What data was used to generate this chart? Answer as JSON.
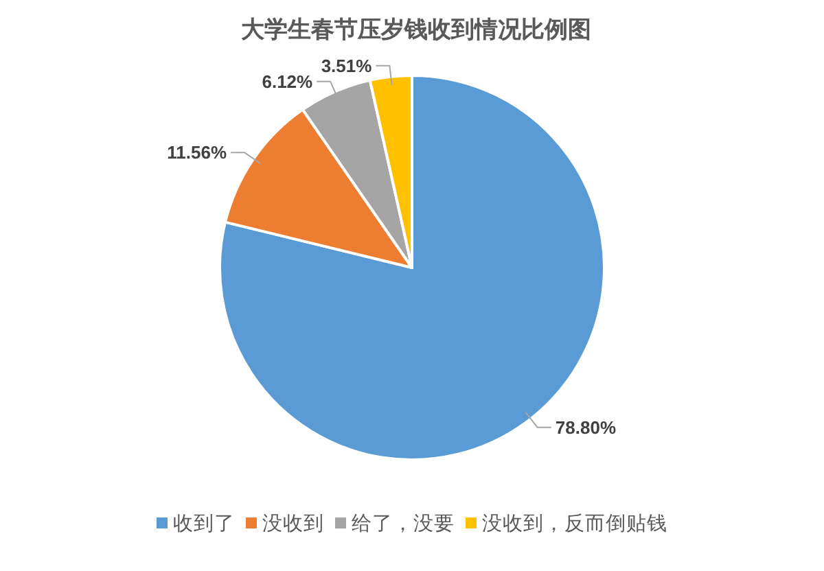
{
  "chart_data": {
    "type": "pie",
    "title": "大学生春节压岁钱收到情况比例图",
    "categories": [
      "收到了",
      "没收到",
      "给了，没要",
      "没收到，反而倒贴钱"
    ],
    "values": [
      78.8,
      11.56,
      6.12,
      3.51
    ],
    "colors": [
      "#5b9bd5",
      "#ed7d31",
      "#a5a5a5",
      "#ffc000"
    ],
    "value_labels": [
      "78.80%",
      "11.56%",
      "6.12%",
      "3.51%"
    ],
    "legend": "bottom"
  }
}
